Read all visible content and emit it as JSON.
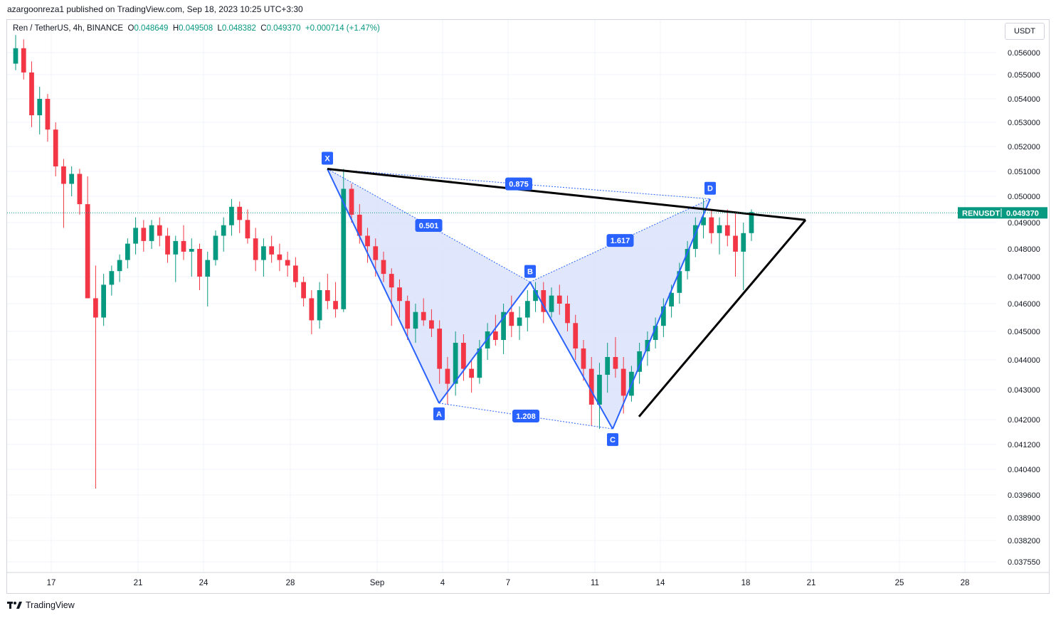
{
  "published": "azargoonreza1 published on TradingView.com, Sep 18, 2023 10:25 UTC+3:30",
  "legend": {
    "symbol": "Ren / TetherUS, 4h, BINANCE",
    "o_label": "O",
    "o": "0.048649",
    "h_label": "H",
    "h": "0.049508",
    "l_label": "L",
    "l": "0.048382",
    "c_label": "C",
    "c": "0.049370",
    "change": "+0.000714 (+1.47%)"
  },
  "currency_button": "USDT",
  "footer": "TradingView",
  "colors": {
    "up": "#089981",
    "down": "#f23645",
    "pattern": "#2962ff",
    "pattern_fill": "#dbe3fb",
    "trend": "#000000"
  },
  "chart_data": {
    "type": "candlestick",
    "symbol": "RENUSDT",
    "timeframe": "4h",
    "y_ticks": [
      "0.056000",
      "0.055000",
      "0.054000",
      "0.053000",
      "0.052000",
      "0.051000",
      "0.050000",
      "0.049000",
      "0.048000",
      "0.047000",
      "0.046000",
      "0.045000",
      "0.044000",
      "0.043000",
      "0.042000",
      "0.041200",
      "0.040400",
      "0.039600",
      "0.038900",
      "0.038200",
      "0.037550"
    ],
    "x_ticks": [
      "17",
      "21",
      "24",
      "28",
      "Sep",
      "4",
      "7",
      "11",
      "14",
      "18",
      "21",
      "25",
      "28"
    ],
    "last_price_label": "RENUSDT",
    "last_price": "0.049370",
    "pattern": {
      "points": [
        {
          "name": "X",
          "date": "Aug 30",
          "price": 0.0511
        },
        {
          "name": "A",
          "date": "Sep 4",
          "price": 0.04255
        },
        {
          "name": "B",
          "date": "Sep 8",
          "price": 0.0468
        },
        {
          "name": "C",
          "date": "Sep 12",
          "price": 0.0417
        },
        {
          "name": "D",
          "date": "Sep 16",
          "price": 0.0499
        }
      ],
      "ratios": [
        "0.875",
        "0.501",
        "1.617",
        "1.208"
      ]
    },
    "trendlines": [
      {
        "from": {
          "date": "Aug 30",
          "price": 0.0511
        },
        "to": {
          "date": "Sep 20",
          "price": 0.0491
        }
      },
      {
        "from": {
          "date": "Sep 13",
          "price": 0.0421
        },
        "to": {
          "date": "Sep 20",
          "price": 0.0491
        }
      }
    ],
    "candles_approx": [
      [
        0.0555,
        0.0568,
        0.0552,
        0.0562
      ],
      [
        0.0562,
        0.0566,
        0.0548,
        0.0551
      ],
      [
        0.0551,
        0.0556,
        0.0528,
        0.0533
      ],
      [
        0.0533,
        0.0545,
        0.0525,
        0.054
      ],
      [
        0.054,
        0.0542,
        0.0522,
        0.0527
      ],
      [
        0.0527,
        0.053,
        0.0508,
        0.0512
      ],
      [
        0.0512,
        0.0515,
        0.0488,
        0.0505
      ],
      [
        0.0505,
        0.0512,
        0.05,
        0.0509
      ],
      [
        0.0509,
        0.0511,
        0.0493,
        0.0497
      ],
      [
        0.0497,
        0.0508,
        0.0462,
        0.0462
      ],
      [
        0.0462,
        0.0474,
        0.0398,
        0.0455
      ],
      [
        0.0455,
        0.0471,
        0.0452,
        0.0467
      ],
      [
        0.0467,
        0.0474,
        0.0463,
        0.0472
      ],
      [
        0.0472,
        0.0478,
        0.0468,
        0.0476
      ],
      [
        0.0476,
        0.0484,
        0.0473,
        0.0482
      ],
      [
        0.0482,
        0.0492,
        0.0478,
        0.0488
      ],
      [
        0.0488,
        0.0491,
        0.0479,
        0.0483
      ],
      [
        0.0483,
        0.0491,
        0.048,
        0.0489
      ],
      [
        0.0489,
        0.0492,
        0.0481,
        0.0485
      ],
      [
        0.0485,
        0.0488,
        0.0475,
        0.0478
      ],
      [
        0.0478,
        0.0485,
        0.0468,
        0.0483
      ],
      [
        0.0483,
        0.0489,
        0.0476,
        0.0479
      ],
      [
        0.0479,
        0.0484,
        0.047,
        0.048
      ],
      [
        0.048,
        0.0482,
        0.0465,
        0.047
      ],
      [
        0.047,
        0.0479,
        0.0459,
        0.0476
      ],
      [
        0.0476,
        0.0487,
        0.0474,
        0.0485
      ],
      [
        0.0485,
        0.0492,
        0.0479,
        0.0489
      ],
      [
        0.0489,
        0.0499,
        0.0485,
        0.0496
      ],
      [
        0.0496,
        0.0498,
        0.0486,
        0.0491
      ],
      [
        0.0491,
        0.0495,
        0.0482,
        0.0484
      ],
      [
        0.0484,
        0.0488,
        0.0472,
        0.0476
      ],
      [
        0.0476,
        0.0484,
        0.047,
        0.0481
      ],
      [
        0.0481,
        0.0485,
        0.0475,
        0.0478
      ],
      [
        0.0478,
        0.0482,
        0.0472,
        0.0476
      ],
      [
        0.0476,
        0.0479,
        0.047,
        0.0474
      ],
      [
        0.0474,
        0.0477,
        0.0466,
        0.0468
      ],
      [
        0.0468,
        0.047,
        0.0459,
        0.0462
      ],
      [
        0.0462,
        0.0465,
        0.0449,
        0.0454
      ],
      [
        0.0454,
        0.0468,
        0.0451,
        0.0465
      ],
      [
        0.0465,
        0.0471,
        0.0458,
        0.0461
      ],
      [
        0.0461,
        0.0468,
        0.0455,
        0.0458
      ],
      [
        0.0458,
        0.0511,
        0.0457,
        0.0503
      ],
      [
        0.0503,
        0.0505,
        0.049,
        0.0493
      ],
      [
        0.0493,
        0.0497,
        0.0482,
        0.0485
      ],
      [
        0.0485,
        0.0488,
        0.0475,
        0.0481
      ],
      [
        0.0481,
        0.0484,
        0.047,
        0.0476
      ],
      [
        0.0476,
        0.0479,
        0.0468,
        0.0471
      ],
      [
        0.0471,
        0.0473,
        0.0452,
        0.0466
      ],
      [
        0.0466,
        0.0469,
        0.0455,
        0.0461
      ],
      [
        0.0461,
        0.0463,
        0.0447,
        0.0451
      ],
      [
        0.0451,
        0.046,
        0.0446,
        0.0457
      ],
      [
        0.0457,
        0.0462,
        0.0452,
        0.0454
      ],
      [
        0.0454,
        0.0458,
        0.0448,
        0.0451
      ],
      [
        0.0451,
        0.0454,
        0.0432,
        0.0437
      ],
      [
        0.0437,
        0.0441,
        0.0425,
        0.0432
      ],
      [
        0.0432,
        0.045,
        0.0428,
        0.0446
      ],
      [
        0.0446,
        0.0449,
        0.0433,
        0.0437
      ],
      [
        0.0437,
        0.044,
        0.0429,
        0.0434
      ],
      [
        0.0434,
        0.0447,
        0.0432,
        0.0444
      ],
      [
        0.0444,
        0.0453,
        0.044,
        0.045
      ],
      [
        0.045,
        0.0456,
        0.0445,
        0.0447
      ],
      [
        0.0447,
        0.046,
        0.0442,
        0.0457
      ],
      [
        0.0457,
        0.0463,
        0.0448,
        0.0452
      ],
      [
        0.0452,
        0.0459,
        0.0447,
        0.0455
      ],
      [
        0.0455,
        0.0465,
        0.045,
        0.0461
      ],
      [
        0.0461,
        0.0468,
        0.0457,
        0.0465
      ],
      [
        0.0465,
        0.0468,
        0.0453,
        0.0457
      ],
      [
        0.0457,
        0.0466,
        0.0455,
        0.0463
      ],
      [
        0.0463,
        0.0467,
        0.0456,
        0.046
      ],
      [
        0.046,
        0.0463,
        0.045,
        0.0453
      ],
      [
        0.0453,
        0.0456,
        0.044,
        0.0444
      ],
      [
        0.0444,
        0.0447,
        0.0433,
        0.0437
      ],
      [
        0.0437,
        0.0441,
        0.0418,
        0.0425
      ],
      [
        0.0425,
        0.0439,
        0.0417,
        0.0435
      ],
      [
        0.0435,
        0.0446,
        0.0429,
        0.0441
      ],
      [
        0.0441,
        0.0448,
        0.0434,
        0.0437
      ],
      [
        0.0437,
        0.0441,
        0.0422,
        0.0428
      ],
      [
        0.0428,
        0.0438,
        0.0426,
        0.0436
      ],
      [
        0.0436,
        0.0446,
        0.0432,
        0.0443
      ],
      [
        0.0443,
        0.045,
        0.0438,
        0.0447
      ],
      [
        0.0447,
        0.0455,
        0.0444,
        0.0452
      ],
      [
        0.0452,
        0.0462,
        0.0448,
        0.0459
      ],
      [
        0.0459,
        0.0467,
        0.0455,
        0.0464
      ],
      [
        0.0464,
        0.0475,
        0.046,
        0.0472
      ],
      [
        0.0472,
        0.0483,
        0.0469,
        0.048
      ],
      [
        0.048,
        0.0492,
        0.0477,
        0.0489
      ],
      [
        0.0489,
        0.0499,
        0.0484,
        0.0492
      ],
      [
        0.0492,
        0.0495,
        0.0482,
        0.0486
      ],
      [
        0.0486,
        0.0492,
        0.0478,
        0.0489
      ],
      [
        0.0489,
        0.0495,
        0.0481,
        0.0485
      ],
      [
        0.0485,
        0.0494,
        0.047,
        0.0479
      ],
      [
        0.0479,
        0.049,
        0.0465,
        0.0486
      ],
      [
        0.0486,
        0.0495,
        0.0483,
        0.0494
      ]
    ]
  }
}
